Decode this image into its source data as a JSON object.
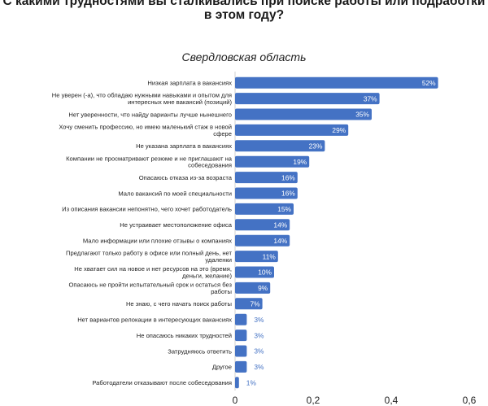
{
  "chart_data": {
    "type": "bar",
    "orientation": "horizontal",
    "title": "С какими трудностями вы сталкивались при поиске работы или подработки в этом году?",
    "subtitle": "Свердловская область",
    "categories": [
      "Низкая зарплата в вакансиях",
      "Не уверен (-а), что обладаю нужными навыками и опытом для интересных мне вакансий (позиций)",
      "Нет уверенности, что найду варианты лучше нынешнего",
      "Хочу сменить профессию, но имею маленький стаж в новой сфере",
      "Не указана зарплата в вакансиях",
      "Компании не просматривают резюме и не приглашают на собеседования",
      "Опасаюсь отказа из-за возраста",
      "Мало вакансий по моей специальности",
      "Из описания вакансии непонятно, чего хочет работодатель",
      "Не устраивает местоположение офиса",
      "Мало информации или плохие отзывы о компаниях",
      "Предлагают только работу в офисе или полный день, нет удаленки",
      "Не хватает сил на новое и нет ресурсов на это (время, деньги, желание)",
      "Опасаюсь не пройти испытательный срок и остаться без работы",
      "Не знаю, с чего начать поиск работы",
      "Нет вариантов релокации в интересующих вакансиях",
      "Не опасаюсь никаких трудностей",
      "Затрудняюсь ответить",
      "Другое",
      "Работодатели отказывают после собеседования"
    ],
    "values": [
      0.52,
      0.37,
      0.35,
      0.29,
      0.23,
      0.19,
      0.16,
      0.16,
      0.15,
      0.14,
      0.14,
      0.11,
      0.1,
      0.09,
      0.07,
      0.03,
      0.03,
      0.03,
      0.03,
      0.01
    ],
    "data_labels": [
      "52%",
      "37%",
      "35%",
      "29%",
      "23%",
      "19%",
      "16%",
      "16%",
      "15%",
      "14%",
      "14%",
      "11%",
      "10%",
      "9%",
      "7%",
      "3%",
      "3%",
      "3%",
      "3%",
      "1%"
    ],
    "x_ticks": [
      "0",
      "0,2",
      "0,4",
      "0,6"
    ],
    "xlim": [
      0,
      0.6
    ],
    "grid": false,
    "colors": {
      "bar": "#4472C4",
      "label_inside": "#ffffff",
      "label_outside": "#4472C4",
      "category_text": "#222222",
      "axis": "#d0d0d0"
    }
  }
}
